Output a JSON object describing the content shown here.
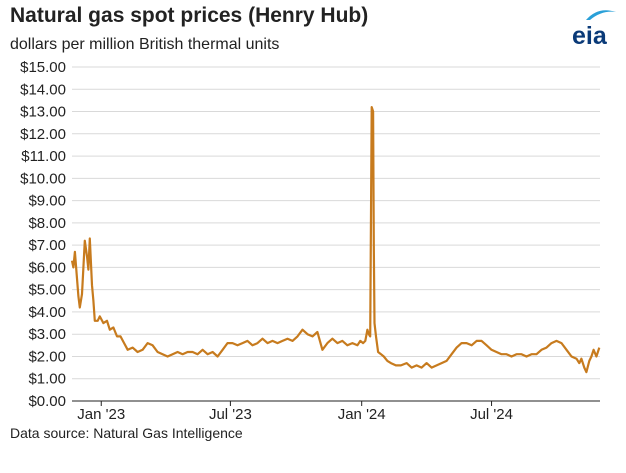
{
  "title": "Natural gas spot prices (Henry Hub)",
  "subtitle": "dollars per million British thermal units",
  "source": "Data source: Natural Gas Intelligence",
  "logo_text": "eia",
  "colors": {
    "line": "#c77b1e",
    "grid": "#d9d9d9",
    "axis": "#222222",
    "logo_text": "#0a3a78",
    "logo_accent": "#2aa0d8"
  },
  "chart_data": {
    "type": "line",
    "title": "Natural gas spot prices (Henry Hub)",
    "ylabel": "dollars per million British thermal units",
    "xlabel": "",
    "ylim": [
      0,
      15
    ],
    "xlim": [
      "2022-11-21",
      "2024-11-30"
    ],
    "grid": "horizontal",
    "y_ticks": [
      "$0.00",
      "$1.00",
      "$2.00",
      "$3.00",
      "$4.00",
      "$5.00",
      "$6.00",
      "$7.00",
      "$8.00",
      "$9.00",
      "$10.00",
      "$11.00",
      "$12.00",
      "$13.00",
      "$14.00",
      "$15.00"
    ],
    "x_ticks": [
      {
        "date": "2023-01-01",
        "label": "Jan '23"
      },
      {
        "date": "2023-07-01",
        "label": "Jul '23"
      },
      {
        "date": "2024-01-01",
        "label": "Jan '24"
      },
      {
        "date": "2024-07-01",
        "label": "Jul '24"
      }
    ],
    "series": [
      {
        "name": "",
        "points": [
          [
            "2022-11-21",
            6.3
          ],
          [
            "2022-11-23",
            6.0
          ],
          [
            "2022-11-25",
            6.7
          ],
          [
            "2022-11-28",
            5.5
          ],
          [
            "2022-11-30",
            4.7
          ],
          [
            "2022-12-02",
            4.2
          ],
          [
            "2022-12-05",
            4.8
          ],
          [
            "2022-12-07",
            6.0
          ],
          [
            "2022-12-09",
            7.2
          ],
          [
            "2022-12-12",
            6.5
          ],
          [
            "2022-12-14",
            5.9
          ],
          [
            "2022-12-16",
            7.3
          ],
          [
            "2022-12-19",
            5.2
          ],
          [
            "2022-12-21",
            4.5
          ],
          [
            "2022-12-23",
            3.6
          ],
          [
            "2022-12-27",
            3.6
          ],
          [
            "2022-12-30",
            3.8
          ],
          [
            "2023-01-04",
            3.5
          ],
          [
            "2023-01-09",
            3.6
          ],
          [
            "2023-01-13",
            3.2
          ],
          [
            "2023-01-18",
            3.3
          ],
          [
            "2023-01-23",
            2.9
          ],
          [
            "2023-01-28",
            2.9
          ],
          [
            "2023-02-02",
            2.6
          ],
          [
            "2023-02-07",
            2.3
          ],
          [
            "2023-02-14",
            2.4
          ],
          [
            "2023-02-21",
            2.2
          ],
          [
            "2023-02-28",
            2.3
          ],
          [
            "2023-03-07",
            2.6
          ],
          [
            "2023-03-14",
            2.5
          ],
          [
            "2023-03-21",
            2.2
          ],
          [
            "2023-03-28",
            2.1
          ],
          [
            "2023-04-04",
            2.0
          ],
          [
            "2023-04-11",
            2.1
          ],
          [
            "2023-04-18",
            2.2
          ],
          [
            "2023-04-25",
            2.1
          ],
          [
            "2023-05-02",
            2.2
          ],
          [
            "2023-05-09",
            2.2
          ],
          [
            "2023-05-16",
            2.1
          ],
          [
            "2023-05-23",
            2.3
          ],
          [
            "2023-05-30",
            2.1
          ],
          [
            "2023-06-06",
            2.2
          ],
          [
            "2023-06-13",
            2.0
          ],
          [
            "2023-06-20",
            2.3
          ],
          [
            "2023-06-27",
            2.6
          ],
          [
            "2023-07-04",
            2.6
          ],
          [
            "2023-07-11",
            2.5
          ],
          [
            "2023-07-18",
            2.6
          ],
          [
            "2023-07-25",
            2.7
          ],
          [
            "2023-08-01",
            2.5
          ],
          [
            "2023-08-08",
            2.6
          ],
          [
            "2023-08-15",
            2.8
          ],
          [
            "2023-08-22",
            2.6
          ],
          [
            "2023-08-29",
            2.7
          ],
          [
            "2023-09-05",
            2.6
          ],
          [
            "2023-09-12",
            2.7
          ],
          [
            "2023-09-19",
            2.8
          ],
          [
            "2023-09-26",
            2.7
          ],
          [
            "2023-10-03",
            2.9
          ],
          [
            "2023-10-10",
            3.2
          ],
          [
            "2023-10-17",
            3.0
          ],
          [
            "2023-10-24",
            2.9
          ],
          [
            "2023-10-31",
            3.1
          ],
          [
            "2023-11-07",
            2.3
          ],
          [
            "2023-11-14",
            2.6
          ],
          [
            "2023-11-21",
            2.8
          ],
          [
            "2023-11-28",
            2.6
          ],
          [
            "2023-12-05",
            2.7
          ],
          [
            "2023-12-12",
            2.5
          ],
          [
            "2023-12-19",
            2.6
          ],
          [
            "2023-12-26",
            2.5
          ],
          [
            "2023-12-30",
            2.7
          ],
          [
            "2024-01-03",
            2.6
          ],
          [
            "2024-01-06",
            2.7
          ],
          [
            "2024-01-09",
            3.2
          ],
          [
            "2024-01-11",
            3.0
          ],
          [
            "2024-01-13",
            2.9
          ],
          [
            "2024-01-15",
            13.2
          ],
          [
            "2024-01-17",
            13.0
          ],
          [
            "2024-01-18",
            7.0
          ],
          [
            "2024-01-19",
            3.5
          ],
          [
            "2024-01-21",
            2.9
          ],
          [
            "2024-01-24",
            2.2
          ],
          [
            "2024-01-28",
            2.1
          ],
          [
            "2024-02-01",
            2.0
          ],
          [
            "2024-02-06",
            1.8
          ],
          [
            "2024-02-11",
            1.7
          ],
          [
            "2024-02-18",
            1.6
          ],
          [
            "2024-02-25",
            1.6
          ],
          [
            "2024-03-04",
            1.7
          ],
          [
            "2024-03-11",
            1.5
          ],
          [
            "2024-03-18",
            1.6
          ],
          [
            "2024-03-25",
            1.5
          ],
          [
            "2024-04-01",
            1.7
          ],
          [
            "2024-04-08",
            1.5
          ],
          [
            "2024-04-15",
            1.6
          ],
          [
            "2024-04-22",
            1.7
          ],
          [
            "2024-04-29",
            1.8
          ],
          [
            "2024-05-06",
            2.1
          ],
          [
            "2024-05-13",
            2.4
          ],
          [
            "2024-05-20",
            2.6
          ],
          [
            "2024-05-27",
            2.6
          ],
          [
            "2024-06-03",
            2.5
          ],
          [
            "2024-06-10",
            2.7
          ],
          [
            "2024-06-17",
            2.7
          ],
          [
            "2024-06-24",
            2.5
          ],
          [
            "2024-07-01",
            2.3
          ],
          [
            "2024-07-08",
            2.2
          ],
          [
            "2024-07-15",
            2.1
          ],
          [
            "2024-07-22",
            2.1
          ],
          [
            "2024-07-29",
            2.0
          ],
          [
            "2024-08-05",
            2.1
          ],
          [
            "2024-08-12",
            2.1
          ],
          [
            "2024-08-19",
            2.0
          ],
          [
            "2024-08-26",
            2.1
          ],
          [
            "2024-09-02",
            2.1
          ],
          [
            "2024-09-09",
            2.3
          ],
          [
            "2024-09-16",
            2.4
          ],
          [
            "2024-09-23",
            2.6
          ],
          [
            "2024-09-30",
            2.7
          ],
          [
            "2024-10-07",
            2.6
          ],
          [
            "2024-10-14",
            2.3
          ],
          [
            "2024-10-21",
            2.0
          ],
          [
            "2024-10-28",
            1.9
          ],
          [
            "2024-11-01",
            1.7
          ],
          [
            "2024-11-04",
            1.9
          ],
          [
            "2024-11-08",
            1.5
          ],
          [
            "2024-11-11",
            1.3
          ],
          [
            "2024-11-15",
            1.8
          ],
          [
            "2024-11-18",
            2.0
          ],
          [
            "2024-11-21",
            2.3
          ],
          [
            "2024-11-25",
            2.0
          ],
          [
            "2024-11-29",
            2.4
          ]
        ]
      }
    ]
  }
}
